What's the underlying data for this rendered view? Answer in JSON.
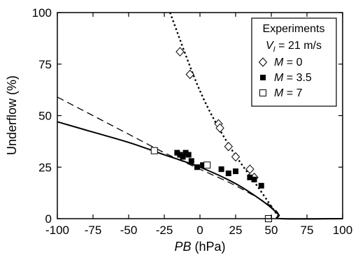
{
  "chart_data": {
    "type": "scatter",
    "xlabel": {
      "var": "PB",
      "unit": " (hPa)"
    },
    "ylabel": "Underflow (%)",
    "xlim": [
      -100,
      100
    ],
    "ylim": [
      0,
      100
    ],
    "xticks": [
      -100,
      -75,
      -50,
      -25,
      0,
      25,
      50,
      75,
      100
    ],
    "yticks": [
      0,
      25,
      50,
      75,
      100
    ],
    "grid": false,
    "legend": {
      "placement": "top-right",
      "title": "Experiments",
      "subtitle": {
        "var": "V",
        "sub": "I",
        "rest": " = 21 m/s"
      },
      "entries": [
        {
          "label_var": "M",
          "label_rest": " = 0",
          "marker": "diamond-open"
        },
        {
          "label_var": "M",
          "label_rest": " = 3.5",
          "marker": "square-filled"
        },
        {
          "label_var": "M",
          "label_rest": " = 7",
          "marker": "square-open"
        }
      ]
    },
    "series": [
      {
        "name": "M = 0",
        "marker": "diamond-open",
        "points": [
          [
            -14,
            81
          ],
          [
            -7,
            70
          ],
          [
            13,
            46
          ],
          [
            14,
            44
          ],
          [
            20,
            35
          ],
          [
            25,
            30
          ],
          [
            35,
            24
          ],
          [
            38,
            20
          ]
        ]
      },
      {
        "name": "M = 3.5",
        "marker": "square-filled",
        "points": [
          [
            -16,
            32
          ],
          [
            -14,
            31
          ],
          [
            -12,
            30
          ],
          [
            -10,
            32
          ],
          [
            -8,
            31
          ],
          [
            -6,
            28
          ],
          [
            -2,
            25
          ],
          [
            2,
            26
          ],
          [
            15,
            24
          ],
          [
            20,
            22
          ],
          [
            25,
            23
          ],
          [
            35,
            20
          ],
          [
            38,
            19
          ],
          [
            43,
            16
          ]
        ]
      },
      {
        "name": "M = 7",
        "marker": "square-open",
        "points": [
          [
            -32,
            33
          ],
          [
            5,
            26
          ],
          [
            48,
            0
          ]
        ]
      }
    ],
    "curves": [
      {
        "style": "dotted",
        "points": [
          [
            -21,
            100
          ],
          [
            0,
            62
          ],
          [
            20,
            36
          ],
          [
            40,
            16
          ],
          [
            56,
            0
          ]
        ]
      },
      {
        "style": "dashed",
        "points": [
          [
            -100,
            59
          ],
          [
            -75,
            50
          ],
          [
            -50,
            41
          ],
          [
            -25,
            32
          ],
          [
            0,
            24
          ],
          [
            25,
            16
          ],
          [
            50,
            6
          ],
          [
            57,
            0
          ]
        ]
      },
      {
        "style": "solid",
        "points": [
          [
            -100,
            47
          ],
          [
            -75,
            42
          ],
          [
            -50,
            37
          ],
          [
            -25,
            31
          ],
          [
            0,
            25
          ],
          [
            25,
            17
          ],
          [
            45,
            8
          ],
          [
            55,
            2
          ],
          [
            57,
            0
          ],
          [
            100,
            0
          ]
        ]
      }
    ]
  }
}
